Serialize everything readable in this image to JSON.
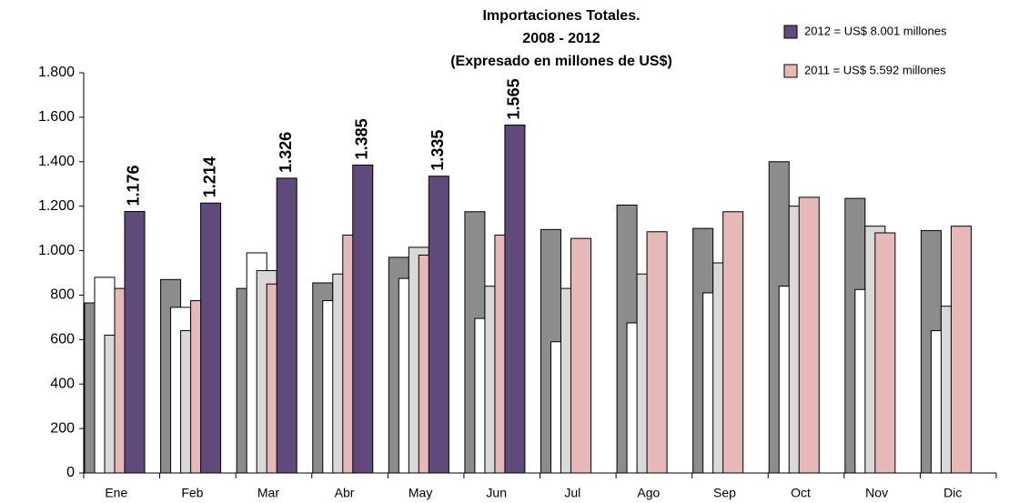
{
  "chart_data": {
    "type": "bar",
    "title": [
      "Importaciones Totales.",
      "2008 - 2012",
      "(Expresado en millones de US$)"
    ],
    "categories": [
      "Ene",
      "Feb",
      "Mar",
      "Abr",
      "May",
      "Jun",
      "Jul",
      "Ago",
      "Sep",
      "Oct",
      "Nov",
      "Dic"
    ],
    "series": [
      {
        "color": "#8c8c8c",
        "values": [
          765,
          870,
          830,
          855,
          970,
          1175,
          1095,
          1205,
          1100,
          1400,
          1235,
          1090
        ]
      },
      {
        "color": "#ffffff",
        "values": [
          880,
          745,
          990,
          775,
          875,
          695,
          590,
          675,
          810,
          840,
          825,
          640
        ]
      },
      {
        "color": "#d9d9d9",
        "values": [
          620,
          640,
          910,
          895,
          1015,
          840,
          830,
          895,
          945,
          1200,
          1110,
          750
        ]
      },
      {
        "name": "2011 = US$ 5.592 millones",
        "color": "#e6b8b7",
        "values": [
          830,
          775,
          850,
          1070,
          980,
          1070,
          1055,
          1085,
          1175,
          1240,
          1080,
          1110
        ]
      },
      {
        "name": "2012 = US$ 8.001 millones",
        "color": "#604a7b",
        "values": [
          1176,
          1214,
          1326,
          1385,
          1335,
          1565,
          null,
          null,
          null,
          null,
          null,
          null
        ],
        "value_labels": [
          "1.176",
          "1.214",
          "1.326",
          "1.385",
          "1.335",
          "1.565",
          null,
          null,
          null,
          null,
          null,
          null
        ]
      }
    ],
    "ylim": [
      0,
      1800
    ],
    "yticks": [
      0,
      200,
      400,
      600,
      800,
      {
        "value": 1000,
        "label": "1.000"
      },
      {
        "value": 1200,
        "label": "1.200"
      },
      {
        "value": 1400,
        "label": "1.400"
      },
      {
        "value": 1600,
        "label": "1.600"
      },
      {
        "value": 1800,
        "label": "1.800"
      }
    ],
    "legend": "top-right"
  }
}
